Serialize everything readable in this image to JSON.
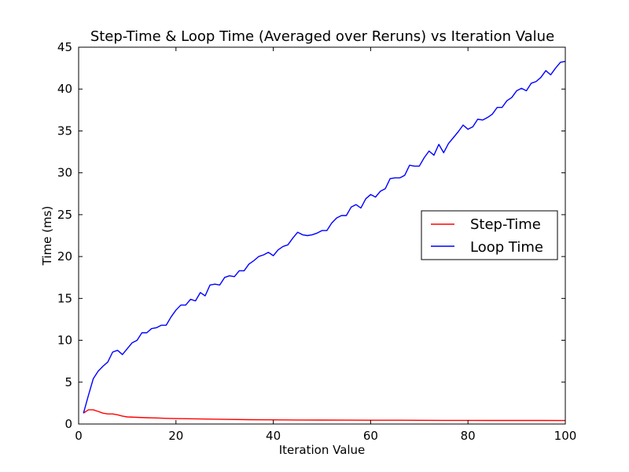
{
  "chart_data": {
    "type": "line",
    "title": "Step-Time & Loop Time (Averaged over Reruns) vs Iteration Value",
    "xlabel": "Iteration Value",
    "ylabel": "Time (ms)",
    "xlim": [
      0,
      100
    ],
    "ylim": [
      0,
      45
    ],
    "xticks": [
      0,
      20,
      40,
      60,
      80,
      100
    ],
    "yticks": [
      0,
      5,
      10,
      15,
      20,
      25,
      30,
      35,
      40,
      45
    ],
    "grid": false,
    "legend_position": "center-right",
    "series": [
      {
        "name": "Step-Time",
        "color": "#ff0000",
        "x": [
          1,
          2,
          3,
          4,
          5,
          6,
          7,
          8,
          9,
          10,
          12,
          14,
          16,
          18,
          20,
          25,
          30,
          35,
          40,
          45,
          50,
          55,
          60,
          65,
          70,
          75,
          80,
          85,
          90,
          95,
          100
        ],
        "y": [
          1.3,
          1.7,
          1.7,
          1.5,
          1.3,
          1.2,
          1.2,
          1.1,
          0.95,
          0.85,
          0.8,
          0.75,
          0.72,
          0.68,
          0.65,
          0.6,
          0.55,
          0.52,
          0.5,
          0.48,
          0.47,
          0.46,
          0.45,
          0.45,
          0.44,
          0.43,
          0.43,
          0.42,
          0.42,
          0.42,
          0.41
        ]
      },
      {
        "name": "Loop Time",
        "color": "#0000ff",
        "x": [
          1,
          2,
          3,
          4,
          5,
          6,
          7,
          8,
          9,
          10,
          11,
          12,
          13,
          14,
          15,
          16,
          17,
          18,
          19,
          20,
          21,
          22,
          23,
          24,
          25,
          26,
          27,
          28,
          29,
          30,
          31,
          32,
          33,
          34,
          35,
          36,
          37,
          38,
          39,
          40,
          41,
          42,
          43,
          44,
          45,
          46,
          47,
          48,
          49,
          50,
          51,
          52,
          53,
          54,
          55,
          56,
          57,
          58,
          59,
          60,
          61,
          62,
          63,
          64,
          65,
          66,
          67,
          68,
          69,
          70,
          71,
          72,
          73,
          74,
          75,
          76,
          77,
          78,
          79,
          80,
          81,
          82,
          83,
          84,
          85,
          86,
          87,
          88,
          89,
          90,
          91,
          92,
          93,
          94,
          95,
          96,
          97,
          98,
          99,
          100
        ],
        "y": [
          1.3,
          3.4,
          5.4,
          6.3,
          6.9,
          7.4,
          8.6,
          8.8,
          8.3,
          9.0,
          9.7,
          10.0,
          10.9,
          10.9,
          11.4,
          11.5,
          11.8,
          11.8,
          12.8,
          13.6,
          14.2,
          14.2,
          14.9,
          14.7,
          15.7,
          15.3,
          16.6,
          16.7,
          16.6,
          17.5,
          17.7,
          17.6,
          18.3,
          18.3,
          19.1,
          19.5,
          20.0,
          20.2,
          20.5,
          20.1,
          20.8,
          21.2,
          21.4,
          22.2,
          22.9,
          22.6,
          22.5,
          22.6,
          22.8,
          23.1,
          23.1,
          24.0,
          24.6,
          24.9,
          24.9,
          25.9,
          26.2,
          25.8,
          26.9,
          27.4,
          27.1,
          27.8,
          28.1,
          29.3,
          29.4,
          29.4,
          29.7,
          30.9,
          30.8,
          30.8,
          31.8,
          32.6,
          32.1,
          33.4,
          32.4,
          33.5,
          34.2,
          34.9,
          35.7,
          35.2,
          35.5,
          36.4,
          36.3,
          36.6,
          37.0,
          37.8,
          37.8,
          38.6,
          39.0,
          39.8,
          40.1,
          39.8,
          40.7,
          40.9,
          41.4,
          42.2,
          41.7,
          42.5,
          43.2,
          43.3
        ]
      }
    ]
  }
}
